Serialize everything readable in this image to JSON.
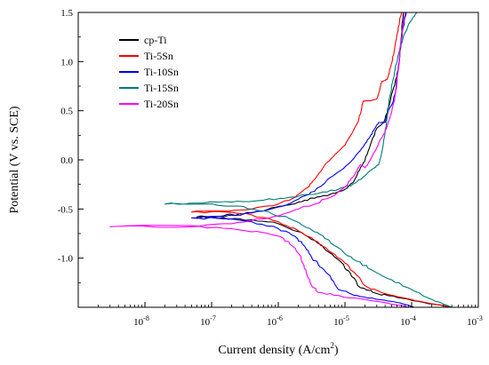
{
  "chart_data": {
    "type": "line",
    "xlabel": "Current density (A/cm",
    "xlabel_sup": "2",
    "xlabel_close": ")",
    "ylabel": "Potential (V vs. SCE)",
    "x_scale": "log",
    "xlim": [
      1e-09,
      0.001
    ],
    "ylim": [
      -1.5,
      1.5
    ],
    "x_ticks": [
      {
        "value": 1e-08,
        "base": "10",
        "exp": "-8"
      },
      {
        "value": 1e-07,
        "base": "10",
        "exp": "-7"
      },
      {
        "value": 1e-06,
        "base": "10",
        "exp": "-6"
      },
      {
        "value": 1e-05,
        "base": "10",
        "exp": "-5"
      },
      {
        "value": 0.0001,
        "base": "10",
        "exp": "-4"
      },
      {
        "value": 0.001,
        "base": "10",
        "exp": "-3"
      }
    ],
    "y_ticks": [
      {
        "value": 1.5,
        "label": "1.5"
      },
      {
        "value": 1.0,
        "label": "1.0"
      },
      {
        "value": 0.5,
        "label": "0.5"
      },
      {
        "value": 0.0,
        "label": "0.0"
      },
      {
        "value": -0.5,
        "label": "-0.5"
      },
      {
        "value": -1.0,
        "label": "-1.0"
      }
    ],
    "grid": false,
    "legend_position": "top-left",
    "series": [
      {
        "name": "cp-Ti",
        "color": "#000000",
        "points": [
          [
            0.0004,
            -1.5
          ],
          [
            0.00015,
            -1.45
          ],
          [
            6e-05,
            -1.4
          ],
          [
            3e-05,
            -1.36
          ],
          [
            1.7e-05,
            -1.3
          ],
          [
            1.2e-05,
            -1.15
          ],
          [
            9e-06,
            -1.05
          ],
          [
            6e-06,
            -0.95
          ],
          [
            3.5e-06,
            -0.82
          ],
          [
            2e-06,
            -0.73
          ],
          [
            1e-06,
            -0.65
          ],
          [
            4e-07,
            -0.61
          ],
          [
            1.5e-07,
            -0.59
          ],
          [
            6e-08,
            -0.58
          ],
          [
            1.5e-07,
            -0.57
          ],
          [
            3e-07,
            -0.55
          ],
          [
            6e-07,
            -0.52
          ],
          [
            1.2e-06,
            -0.47
          ],
          [
            2e-06,
            -0.43
          ],
          [
            3.5e-06,
            -0.39
          ],
          [
            6e-06,
            -0.35
          ],
          [
            1e-05,
            -0.3
          ],
          [
            1.4e-05,
            -0.2
          ],
          [
            1.7e-05,
            -0.08
          ],
          [
            2e-05,
            0.0
          ],
          [
            2.4e-05,
            0.15
          ],
          [
            3e-05,
            0.32
          ],
          [
            3.8e-05,
            0.38
          ],
          [
            4.6e-05,
            0.55
          ],
          [
            5.2e-05,
            0.7
          ],
          [
            6e-05,
            0.85
          ],
          [
            6.5e-05,
            1.0
          ],
          [
            7e-05,
            1.25
          ],
          [
            7.5e-05,
            1.5
          ]
        ]
      },
      {
        "name": "Ti-5Sn",
        "color": "#ff0000",
        "points": [
          [
            0.0004,
            -1.5
          ],
          [
            0.00016,
            -1.45
          ],
          [
            7e-05,
            -1.4
          ],
          [
            3.5e-05,
            -1.35
          ],
          [
            2e-05,
            -1.28
          ],
          [
            1.4e-05,
            -1.15
          ],
          [
            1e-05,
            -1.05
          ],
          [
            6.5e-06,
            -0.95
          ],
          [
            3.5e-06,
            -0.82
          ],
          [
            2e-06,
            -0.72
          ],
          [
            1e-06,
            -0.63
          ],
          [
            4e-07,
            -0.56
          ],
          [
            1.5e-07,
            -0.53
          ],
          [
            5e-08,
            -0.53
          ],
          [
            1.5e-07,
            -0.52
          ],
          [
            4e-07,
            -0.5
          ],
          [
            1e-06,
            -0.45
          ],
          [
            1.8e-06,
            -0.38
          ],
          [
            2.8e-06,
            -0.28
          ],
          [
            3.5e-06,
            -0.2
          ],
          [
            5e-06,
            -0.05
          ],
          [
            7e-06,
            0.05
          ],
          [
            1e-05,
            0.15
          ],
          [
            1.3e-05,
            0.28
          ],
          [
            1.6e-05,
            0.4
          ],
          [
            1.9e-05,
            0.6
          ],
          [
            2.4e-05,
            0.6
          ],
          [
            3e-05,
            0.62
          ],
          [
            3.6e-05,
            0.8
          ],
          [
            4.3e-05,
            0.82
          ],
          [
            5e-05,
            0.98
          ],
          [
            5.6e-05,
            1.15
          ],
          [
            6.3e-05,
            1.35
          ],
          [
            7e-05,
            1.5
          ]
        ]
      },
      {
        "name": "Ti-10Sn",
        "color": "#0000ff",
        "points": [
          [
            0.00011,
            -1.5
          ],
          [
            6e-05,
            -1.45
          ],
          [
            3e-05,
            -1.42
          ],
          [
            1.5e-05,
            -1.38
          ],
          [
            8e-06,
            -1.32
          ],
          [
            6e-06,
            -1.18
          ],
          [
            4.5e-06,
            -1.1
          ],
          [
            3.2e-06,
            -1.0
          ],
          [
            2.5e-06,
            -0.88
          ],
          [
            1.8e-06,
            -0.78
          ],
          [
            1e-06,
            -0.7
          ],
          [
            4e-07,
            -0.63
          ],
          [
            1.5e-07,
            -0.6
          ],
          [
            5e-08,
            -0.59
          ],
          [
            1.5e-07,
            -0.58
          ],
          [
            4e-07,
            -0.54
          ],
          [
            1e-06,
            -0.48
          ],
          [
            2e-06,
            -0.4
          ],
          [
            3.5e-06,
            -0.32
          ],
          [
            6e-06,
            -0.18
          ],
          [
            9e-06,
            -0.1
          ],
          [
            1.3e-05,
            0.0
          ],
          [
            1.8e-05,
            0.12
          ],
          [
            2.3e-05,
            0.22
          ],
          [
            2.7e-05,
            0.3
          ],
          [
            3.2e-05,
            0.38
          ],
          [
            4e-05,
            0.38
          ],
          [
            4.6e-05,
            0.52
          ],
          [
            5.2e-05,
            0.58
          ],
          [
            5.8e-05,
            0.72
          ],
          [
            6.3e-05,
            0.92
          ],
          [
            6.8e-05,
            1.15
          ],
          [
            7.5e-05,
            1.35
          ],
          [
            8.3e-05,
            1.5
          ]
        ]
      },
      {
        "name": "Ti-15Sn",
        "color": "#007b7b",
        "points": [
          [
            0.0004,
            -1.5
          ],
          [
            0.0002,
            -1.42
          ],
          [
            0.0001,
            -1.32
          ],
          [
            5e-05,
            -1.22
          ],
          [
            2.5e-05,
            -1.12
          ],
          [
            1.5e-05,
            -1.03
          ],
          [
            9e-06,
            -0.92
          ],
          [
            5e-06,
            -0.8
          ],
          [
            3e-06,
            -0.7
          ],
          [
            1.5e-06,
            -0.6
          ],
          [
            6e-07,
            -0.52
          ],
          [
            2.5e-07,
            -0.47
          ],
          [
            8e-08,
            -0.45
          ],
          [
            2e-08,
            -0.45
          ],
          [
            6e-08,
            -0.44
          ],
          [
            2e-07,
            -0.43
          ],
          [
            6e-07,
            -0.41
          ],
          [
            1.5e-06,
            -0.38
          ],
          [
            4e-06,
            -0.34
          ],
          [
            8e-06,
            -0.3
          ],
          [
            1.3e-05,
            -0.25
          ],
          [
            1.8e-05,
            -0.19
          ],
          [
            2.3e-05,
            -0.12
          ],
          [
            2.8e-05,
            -0.08
          ],
          [
            3.2e-05,
            -0.05
          ],
          [
            3.5e-05,
            0.05
          ],
          [
            4e-05,
            0.3
          ],
          [
            4.5e-05,
            0.55
          ],
          [
            5.2e-05,
            0.8
          ],
          [
            6.2e-05,
            1.05
          ],
          [
            7.5e-05,
            1.25
          ],
          [
            9e-05,
            1.38
          ],
          [
            0.000105,
            1.45
          ],
          [
            0.00012,
            1.5
          ]
        ]
      },
      {
        "name": "Ti-20Sn",
        "color": "#ff00ff",
        "points": [
          [
            9e-05,
            -1.5
          ],
          [
            4.5e-05,
            -1.46
          ],
          [
            2e-05,
            -1.42
          ],
          [
            8e-06,
            -1.38
          ],
          [
            4e-06,
            -1.35
          ],
          [
            3e-06,
            -1.25
          ],
          [
            2.6e-06,
            -1.12
          ],
          [
            2.2e-06,
            -1.0
          ],
          [
            1.8e-06,
            -0.9
          ],
          [
            1.2e-06,
            -0.8
          ],
          [
            6e-07,
            -0.74
          ],
          [
            2e-07,
            -0.7
          ],
          [
            5e-08,
            -0.68
          ],
          [
            3e-09,
            -0.68
          ],
          [
            5e-08,
            -0.67
          ],
          [
            2e-07,
            -0.65
          ],
          [
            6e-07,
            -0.6
          ],
          [
            1.5e-06,
            -0.53
          ],
          [
            3.5e-06,
            -0.45
          ],
          [
            7e-06,
            -0.36
          ],
          [
            1.1e-05,
            -0.25
          ],
          [
            1.4e-05,
            -0.15
          ],
          [
            1.7e-05,
            -0.05
          ],
          [
            2e-05,
            -0.08
          ],
          [
            2.4e-05,
            0.0
          ],
          [
            2.9e-05,
            0.1
          ],
          [
            3.5e-05,
            0.22
          ],
          [
            4.2e-05,
            0.32
          ],
          [
            5e-05,
            0.48
          ],
          [
            5.8e-05,
            0.7
          ],
          [
            6.4e-05,
            0.95
          ],
          [
            6.9e-05,
            1.2
          ],
          [
            7.4e-05,
            1.38
          ],
          [
            8e-05,
            1.5
          ]
        ]
      }
    ]
  }
}
